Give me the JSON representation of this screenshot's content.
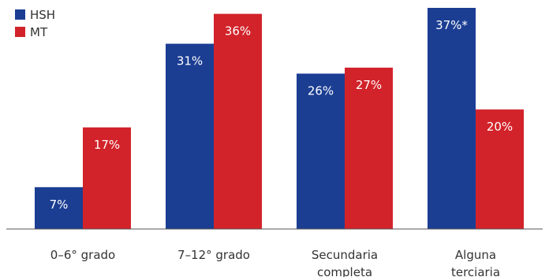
{
  "chart_data": {
    "type": "bar",
    "categories": [
      [
        "0–6° grado"
      ],
      [
        "7–12° grado"
      ],
      [
        "Secundaria",
        "completa"
      ],
      [
        "Alguna",
        "terciaria"
      ]
    ],
    "series": [
      {
        "name": "HSH",
        "color": "#1b3e93",
        "values": [
          7,
          31,
          26,
          37
        ],
        "labels": [
          "7%",
          "31%",
          "26%",
          "37%*"
        ]
      },
      {
        "name": "MT",
        "color": "#d2232a",
        "values": [
          17,
          36,
          27,
          20
        ],
        "labels": [
          "17%",
          "36%",
          "27%",
          "20%"
        ]
      }
    ],
    "ylim": [
      0,
      37
    ],
    "legend_position": "top-left",
    "grid": false
  }
}
